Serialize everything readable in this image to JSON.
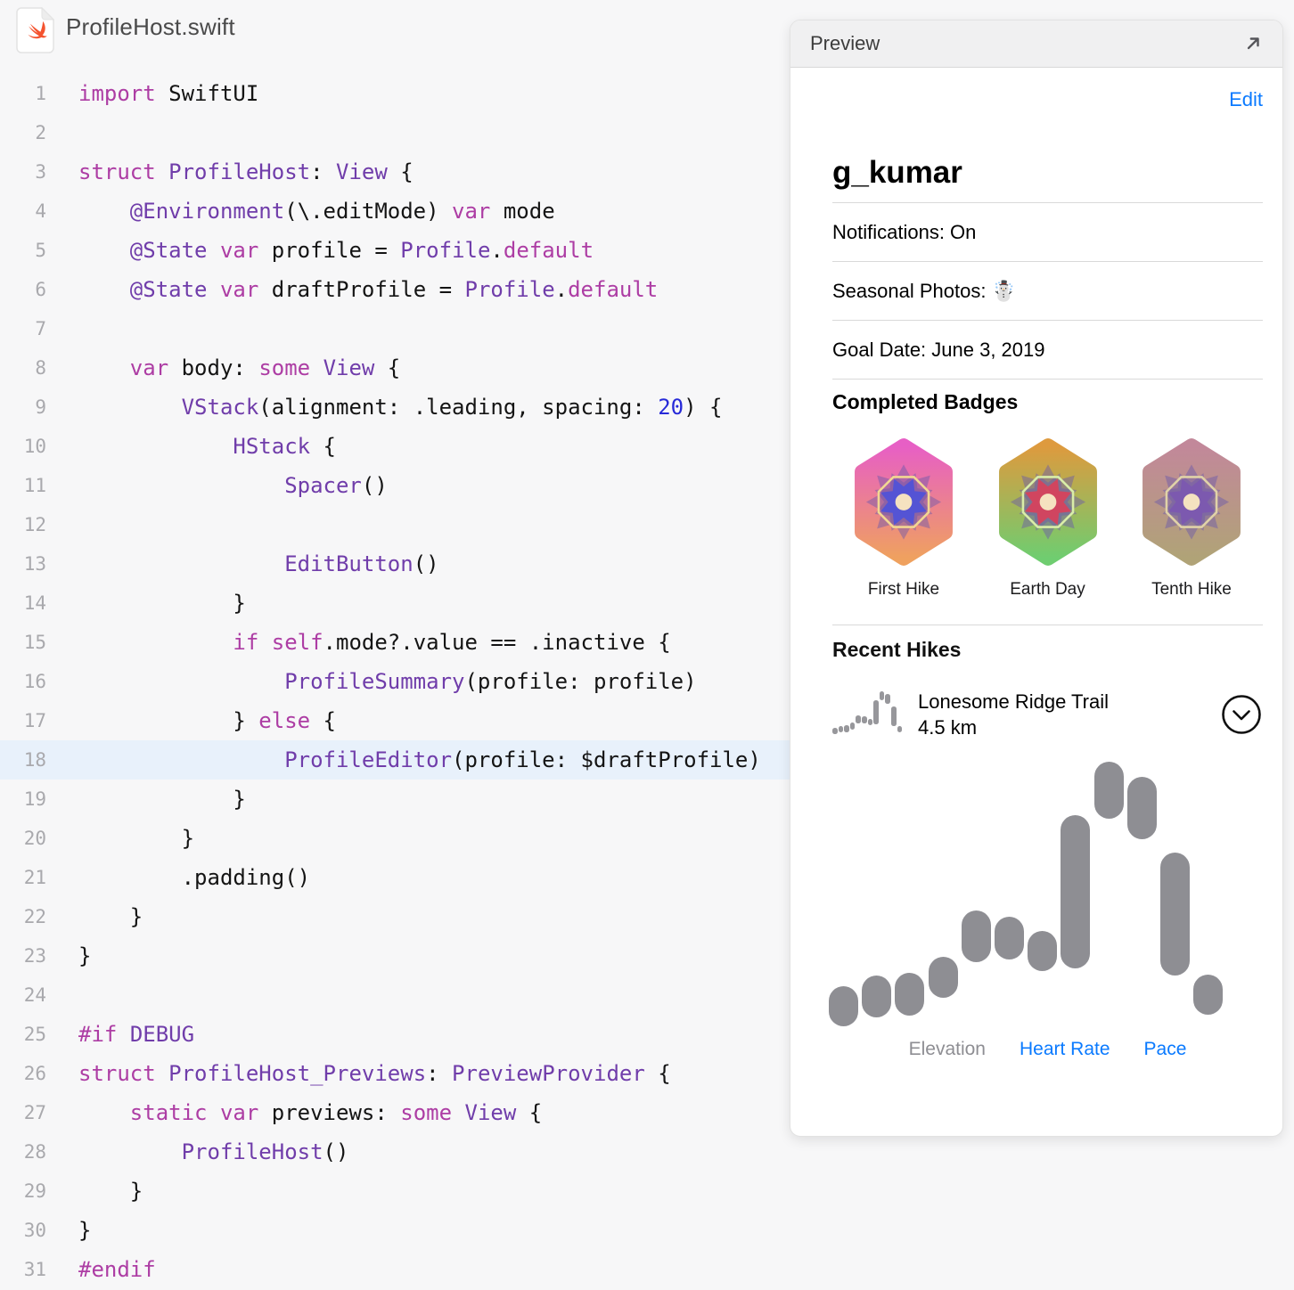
{
  "file": {
    "title": "ProfileHost.swift"
  },
  "editor": {
    "highlight_line": 18,
    "token_colors": {
      "keyword": "#AD3DA4",
      "type": "#703DAA",
      "number": "#272AD8",
      "plain": "#141414"
    },
    "highlight_color": "#E8F1FB",
    "lines": [
      {
        "n": 1,
        "tokens": [
          [
            "k",
            "import"
          ],
          [
            "p",
            " SwiftUI"
          ]
        ]
      },
      {
        "n": 2,
        "tokens": []
      },
      {
        "n": 3,
        "tokens": [
          [
            "k",
            "struct"
          ],
          [
            "p",
            " "
          ],
          [
            "t",
            "ProfileHost"
          ],
          [
            "p",
            ": "
          ],
          [
            "t",
            "View"
          ],
          [
            "p",
            " {"
          ]
        ]
      },
      {
        "n": 4,
        "tokens": [
          [
            "p",
            "    "
          ],
          [
            "t",
            "@Environment"
          ],
          [
            "p",
            "(\\.editMode) "
          ],
          [
            "k",
            "var"
          ],
          [
            "p",
            " mode"
          ]
        ]
      },
      {
        "n": 5,
        "tokens": [
          [
            "p",
            "    "
          ],
          [
            "t",
            "@State"
          ],
          [
            "p",
            " "
          ],
          [
            "k",
            "var"
          ],
          [
            "p",
            " profile = "
          ],
          [
            "t",
            "Profile"
          ],
          [
            "p",
            "."
          ],
          [
            "k",
            "default"
          ]
        ]
      },
      {
        "n": 6,
        "tokens": [
          [
            "p",
            "    "
          ],
          [
            "t",
            "@State"
          ],
          [
            "p",
            " "
          ],
          [
            "k",
            "var"
          ],
          [
            "p",
            " draftProfile = "
          ],
          [
            "t",
            "Profile"
          ],
          [
            "p",
            "."
          ],
          [
            "k",
            "default"
          ]
        ]
      },
      {
        "n": 7,
        "tokens": []
      },
      {
        "n": 8,
        "tokens": [
          [
            "p",
            "    "
          ],
          [
            "k",
            "var"
          ],
          [
            "p",
            " body: "
          ],
          [
            "k",
            "some"
          ],
          [
            "p",
            " "
          ],
          [
            "t",
            "View"
          ],
          [
            "p",
            " {"
          ]
        ]
      },
      {
        "n": 9,
        "tokens": [
          [
            "p",
            "        "
          ],
          [
            "t",
            "VStack"
          ],
          [
            "p",
            "(alignment: .leading, spacing: "
          ],
          [
            "n",
            "20"
          ],
          [
            "p",
            ") {"
          ]
        ]
      },
      {
        "n": 10,
        "tokens": [
          [
            "p",
            "            "
          ],
          [
            "t",
            "HStack"
          ],
          [
            "p",
            " {"
          ]
        ]
      },
      {
        "n": 11,
        "tokens": [
          [
            "p",
            "                "
          ],
          [
            "t",
            "Spacer"
          ],
          [
            "p",
            "()"
          ]
        ]
      },
      {
        "n": 12,
        "tokens": []
      },
      {
        "n": 13,
        "tokens": [
          [
            "p",
            "                "
          ],
          [
            "t",
            "EditButton"
          ],
          [
            "p",
            "()"
          ]
        ]
      },
      {
        "n": 14,
        "tokens": [
          [
            "p",
            "            }"
          ]
        ]
      },
      {
        "n": 15,
        "tokens": [
          [
            "p",
            "            "
          ],
          [
            "k",
            "if"
          ],
          [
            "p",
            " "
          ],
          [
            "k",
            "self"
          ],
          [
            "p",
            ".mode?.value == .inactive {"
          ]
        ]
      },
      {
        "n": 16,
        "tokens": [
          [
            "p",
            "                "
          ],
          [
            "t",
            "ProfileSummary"
          ],
          [
            "p",
            "(profile: profile)"
          ]
        ]
      },
      {
        "n": 17,
        "tokens": [
          [
            "p",
            "            } "
          ],
          [
            "k",
            "else"
          ],
          [
            "p",
            " {"
          ]
        ]
      },
      {
        "n": 18,
        "tokens": [
          [
            "p",
            "                "
          ],
          [
            "t",
            "ProfileEditor"
          ],
          [
            "p",
            "(profile: $draftProfile)"
          ]
        ]
      },
      {
        "n": 19,
        "tokens": [
          [
            "p",
            "            }"
          ]
        ]
      },
      {
        "n": 20,
        "tokens": [
          [
            "p",
            "        }"
          ]
        ]
      },
      {
        "n": 21,
        "tokens": [
          [
            "p",
            "        .padding()"
          ]
        ]
      },
      {
        "n": 22,
        "tokens": [
          [
            "p",
            "    }"
          ]
        ]
      },
      {
        "n": 23,
        "tokens": [
          [
            "p",
            "}"
          ]
        ]
      },
      {
        "n": 24,
        "tokens": []
      },
      {
        "n": 25,
        "tokens": [
          [
            "k",
            "#if"
          ],
          [
            "p",
            " "
          ],
          [
            "t",
            "DEBUG"
          ]
        ]
      },
      {
        "n": 26,
        "tokens": [
          [
            "k",
            "struct"
          ],
          [
            "p",
            " "
          ],
          [
            "t",
            "ProfileHost_Previews"
          ],
          [
            "p",
            ": "
          ],
          [
            "t",
            "PreviewProvider"
          ],
          [
            "p",
            " {"
          ]
        ]
      },
      {
        "n": 27,
        "tokens": [
          [
            "p",
            "    "
          ],
          [
            "k",
            "static"
          ],
          [
            "p",
            " "
          ],
          [
            "k",
            "var"
          ],
          [
            "p",
            " previews: "
          ],
          [
            "k",
            "some"
          ],
          [
            "p",
            " "
          ],
          [
            "t",
            "View"
          ],
          [
            "p",
            " {"
          ]
        ]
      },
      {
        "n": 28,
        "tokens": [
          [
            "p",
            "        "
          ],
          [
            "t",
            "ProfileHost"
          ],
          [
            "p",
            "()"
          ]
        ]
      },
      {
        "n": 29,
        "tokens": [
          [
            "p",
            "    }"
          ]
        ]
      },
      {
        "n": 30,
        "tokens": [
          [
            "p",
            "}"
          ]
        ]
      },
      {
        "n": 31,
        "tokens": [
          [
            "k",
            "#endif"
          ]
        ]
      }
    ]
  },
  "preview": {
    "header_title": "Preview",
    "edit_label": "Edit",
    "username": "g_kumar",
    "rows": [
      {
        "label": "Notifications: On"
      },
      {
        "label": "Seasonal Photos: ☃️"
      },
      {
        "label": "Goal Date: June 3, 2019"
      }
    ],
    "badges_title": "Completed Badges",
    "badges": [
      {
        "label": "First Hike",
        "grad_top": "#E75FC5",
        "grad_bottom": "#EFA15F",
        "core": "#4F52D8",
        "ring": "#F2D792"
      },
      {
        "label": "Earth Day",
        "grad_top": "#DE9A3E",
        "grad_bottom": "#6FCD70",
        "core": "#D8415B",
        "ring": "#D9EDA8"
      },
      {
        "label": "Tenth Hike",
        "grad_top": "#C2889A",
        "grad_bottom": "#B0A377",
        "core": "#7C58B0",
        "ring": "#E0D2A8"
      }
    ],
    "hikes_title": "Recent Hikes",
    "hike": {
      "name": "Lonesome Ridge Trail",
      "distance": "4.5 km"
    },
    "hike_graph": {
      "type": "capsule-range",
      "note": "values are [top, bottom] fractions of plot height, 12 samples, elevation view",
      "capsules": [
        [
          0.849,
          1.0
        ],
        [
          0.808,
          0.966
        ],
        [
          0.798,
          0.96
        ],
        [
          0.737,
          0.892
        ],
        [
          0.562,
          0.758
        ],
        [
          0.586,
          0.747
        ],
        [
          0.64,
          0.791
        ],
        [
          0.202,
          0.781
        ],
        [
          0.0,
          0.215
        ],
        [
          0.057,
          0.293
        ],
        [
          0.343,
          0.808
        ],
        [
          0.805,
          0.956
        ]
      ],
      "capsule_color": "#8E8E93"
    },
    "legend": [
      {
        "label": "Elevation",
        "active": false
      },
      {
        "label": "Heart Rate",
        "active": true
      },
      {
        "label": "Pace",
        "active": true
      }
    ],
    "colors": {
      "accent_blue": "#0A7AFF",
      "capsule_gray": "#8E8E93",
      "legend_gray": "#8E8E93"
    }
  }
}
